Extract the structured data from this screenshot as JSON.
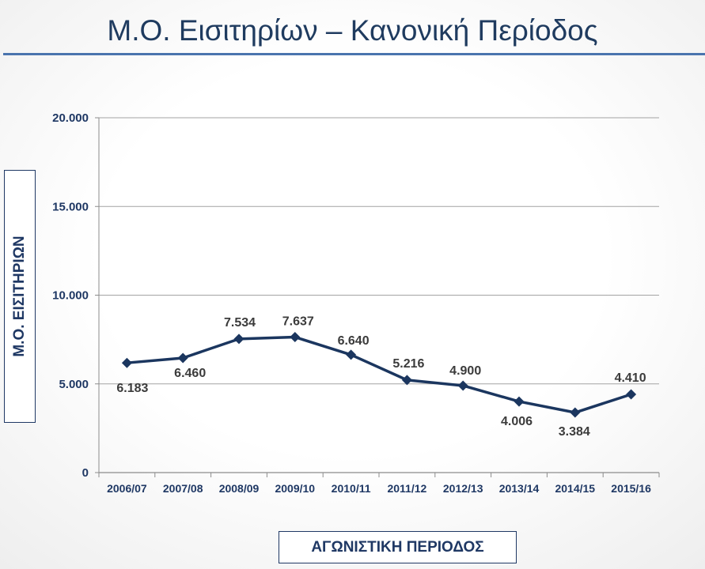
{
  "colors": {
    "title": "#1F3B5F",
    "title_rule": "#4A74AE",
    "series": "#1B365F",
    "grid": "#A3A3A3",
    "axis": "#8C8C8C",
    "axis_text": "#1F3864",
    "data_label": "#3B3B3B",
    "label_box_border": "#1F3864"
  },
  "chart_data": {
    "type": "line",
    "title": "Μ.Ο. Εισιτηρίων – Κανονική Περίοδος",
    "xlabel": "ΑΓΩΝΙΣΤΙΚΗ ΠΕΡΙΟΔΟΣ",
    "ylabel": "Μ.Ο. ΕΙΣΙΤΗΡΙΩΝ",
    "categories": [
      "2006/07",
      "2007/08",
      "2008/09",
      "2009/10",
      "2010/11",
      "2011/12",
      "2012/13",
      "2013/14",
      "2014/15",
      "2015/16"
    ],
    "series": [
      {
        "values": [
          6183,
          6460,
          7534,
          7637,
          6640,
          5216,
          4900,
          4006,
          3384,
          4410
        ],
        "data_labels": [
          "6.183",
          "6.460",
          "7.534",
          "7.637",
          "6.640",
          "5.216",
          "4.900",
          "4.006",
          "3.384",
          "4.410"
        ]
      }
    ],
    "ylim": [
      0,
      20000
    ],
    "yticks": [
      0,
      5000,
      10000,
      15000,
      20000
    ],
    "ytick_labels": [
      "0",
      "5.000",
      "10.000",
      "15.000",
      "20.000"
    ],
    "grid": true
  }
}
